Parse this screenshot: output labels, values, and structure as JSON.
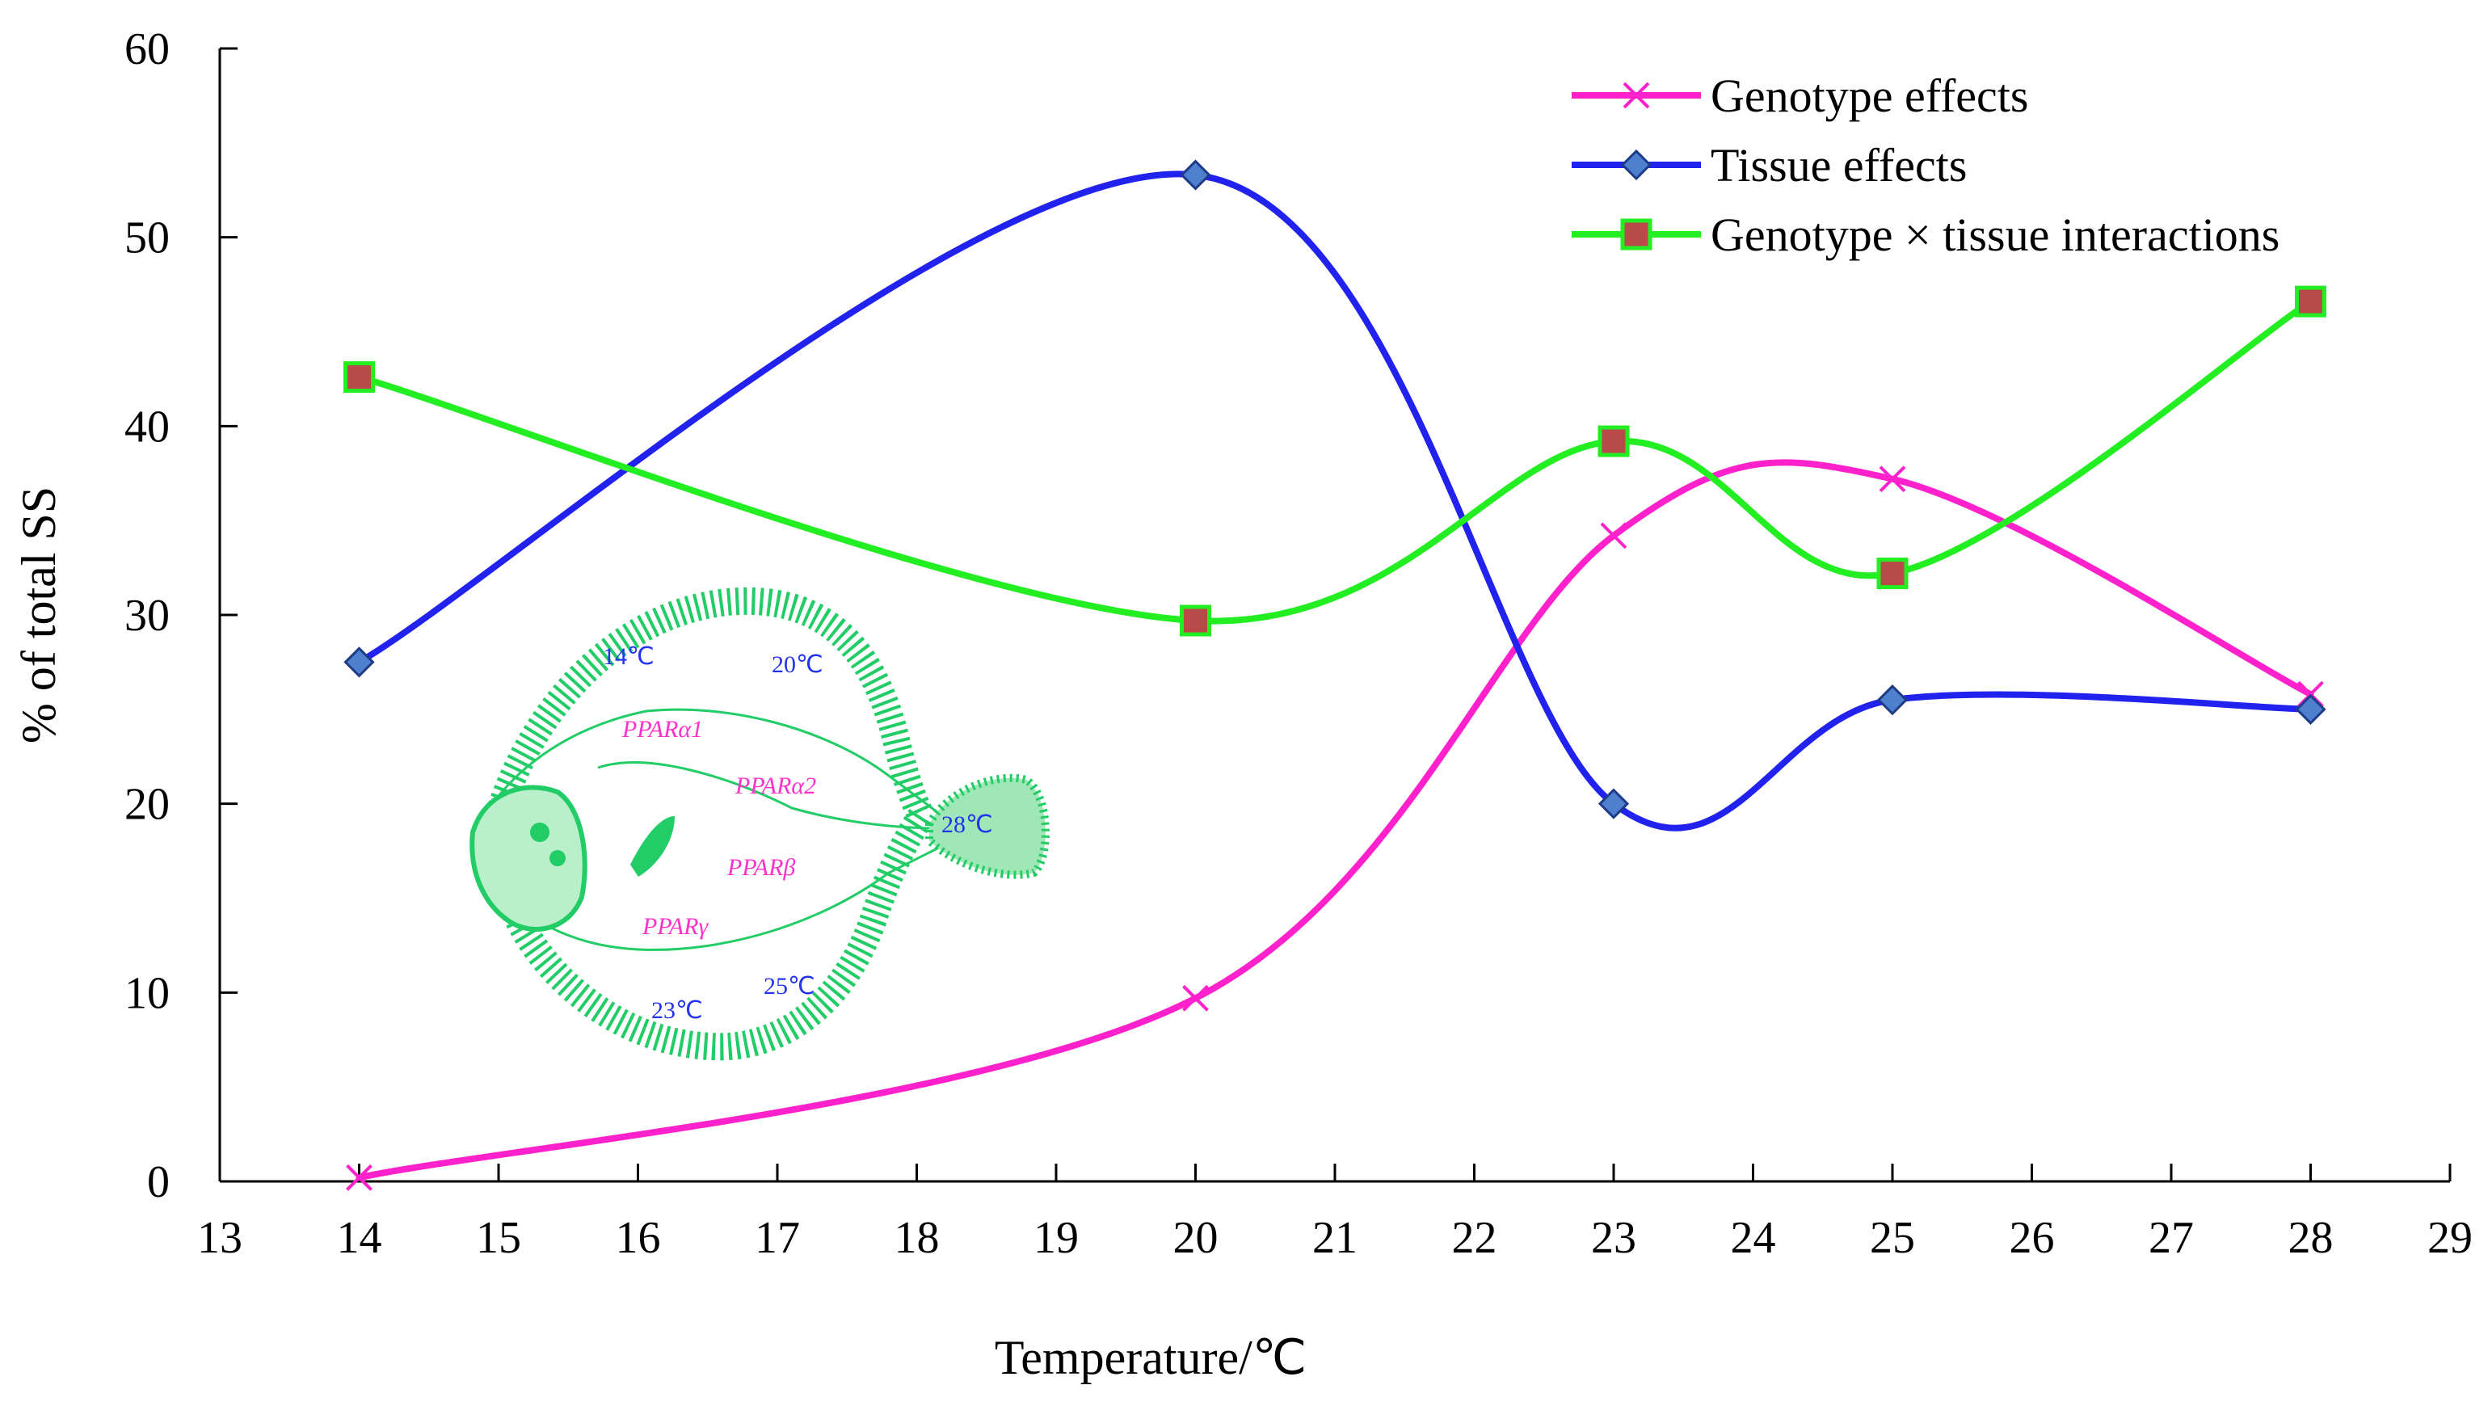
{
  "chart_data": {
    "type": "line",
    "title": "",
    "xlabel": "Temperature/℃",
    "ylabel": "% of total SS",
    "xlim": [
      13,
      29
    ],
    "ylim": [
      0,
      60
    ],
    "x_ticks": [
      13,
      14,
      15,
      16,
      17,
      18,
      19,
      20,
      21,
      22,
      23,
      24,
      25,
      26,
      27,
      28,
      29
    ],
    "y_ticks": [
      0,
      10,
      20,
      30,
      40,
      50,
      60
    ],
    "grid": false,
    "legend_position": "top-right",
    "series": [
      {
        "name": "Genotype effects",
        "marker": "x",
        "color": "#ff22cc",
        "x": [
          14,
          20,
          23,
          25,
          28
        ],
        "values": [
          0.2,
          9.7,
          34.2,
          37.2,
          25.8
        ]
      },
      {
        "name": "Tissue effects",
        "marker": "diamond",
        "color": "#2222ee",
        "x": [
          14,
          20,
          23,
          25,
          28
        ],
        "values": [
          27.5,
          53.3,
          20.0,
          25.5,
          25.0
        ]
      },
      {
        "name": "Genotype × tissue interactions",
        "marker": "square",
        "color": "#22ee22",
        "x": [
          14,
          20,
          23,
          25,
          28
        ],
        "values": [
          42.6,
          29.7,
          39.2,
          32.2,
          46.6
        ]
      }
    ],
    "inset": {
      "description_labels": {
        "genes": [
          "PPARα1",
          "PPARα2",
          "PPARβ",
          "PPARγ"
        ],
        "temps": [
          "14℃",
          "20℃",
          "28℃",
          "23℃",
          "25℃"
        ]
      },
      "colors": {
        "fish": "#22cc66",
        "gene_text": "#ff33cc",
        "temp_text": "#2233ee"
      }
    }
  }
}
